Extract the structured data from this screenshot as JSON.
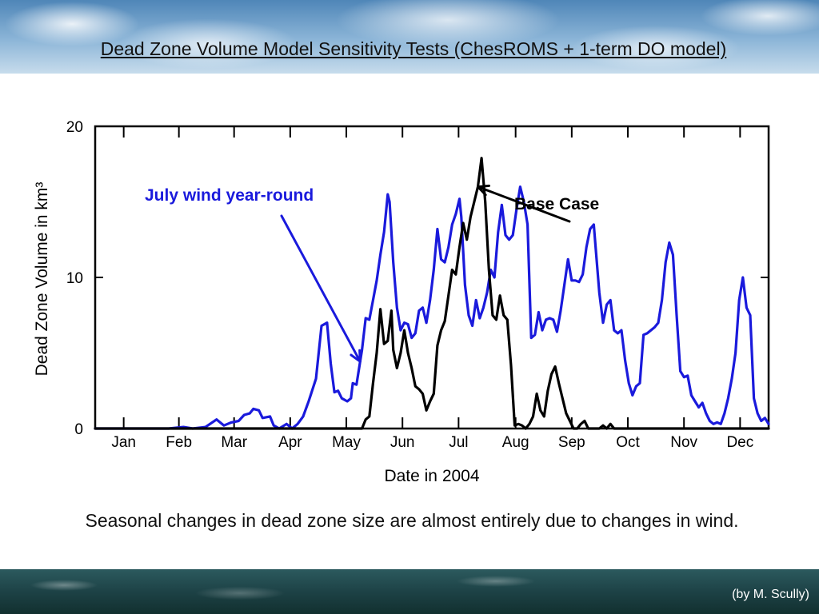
{
  "slide": {
    "title": "Dead Zone Volume Model Sensitivity Tests (ChesROMS + 1-term DO model)",
    "caption": "Seasonal changes in dead zone size are almost entirely due to changes in wind.",
    "credit": "(by M. Scully)"
  },
  "colors": {
    "blue_series": "#1a1adc",
    "black_series": "#000000"
  },
  "chart_data": {
    "type": "line",
    "xlabel": "Date in 2004",
    "ylabel": "Dead Zone Volume in km³",
    "ylim": [
      0,
      20
    ],
    "yticks": [
      0,
      10,
      20
    ],
    "ytick_labels": [
      "0",
      "10",
      "20"
    ],
    "months": [
      "Jan",
      "Feb",
      "Mar",
      "Apr",
      "May",
      "Jun",
      "Jul",
      "Aug",
      "Sep",
      "Oct",
      "Nov",
      "Dec"
    ],
    "annotations": [
      {
        "label": "July wind year-round",
        "series": "July wind year-round",
        "point_at_day": 144
      },
      {
        "label": "Base Case",
        "series": "Base Case",
        "point_at_day": 208
      }
    ],
    "series": [
      {
        "name": "July wind year-round",
        "color": "#1a1adc",
        "points": [
          [
            0,
            0
          ],
          [
            40,
            0
          ],
          [
            48,
            0.1
          ],
          [
            53,
            0
          ],
          [
            60,
            0.1
          ],
          [
            66,
            0.6
          ],
          [
            70,
            0.2
          ],
          [
            74,
            0.4
          ],
          [
            78,
            0.5
          ],
          [
            81,
            0.9
          ],
          [
            84,
            1.0
          ],
          [
            86,
            1.3
          ],
          [
            89,
            1.2
          ],
          [
            91,
            0.7
          ],
          [
            95,
            0.8
          ],
          [
            97,
            0.2
          ],
          [
            100,
            0
          ],
          [
            104,
            0.3
          ],
          [
            107,
            0
          ],
          [
            110,
            0.3
          ],
          [
            113,
            0.8
          ],
          [
            116,
            1.8
          ],
          [
            120,
            3.3
          ],
          [
            123,
            6.8
          ],
          [
            126,
            7.0
          ],
          [
            128,
            4.3
          ],
          [
            130,
            2.4
          ],
          [
            132,
            2.5
          ],
          [
            134,
            2.0
          ],
          [
            137,
            1.8
          ],
          [
            139,
            2.0
          ],
          [
            140,
            3.0
          ],
          [
            142,
            2.9
          ],
          [
            145,
            5.2
          ],
          [
            147,
            7.3
          ],
          [
            149,
            7.2
          ],
          [
            151,
            8.5
          ],
          [
            153,
            9.8
          ],
          [
            155,
            11.5
          ],
          [
            157,
            13.0
          ],
          [
            159,
            15.5
          ],
          [
            160,
            15.0
          ],
          [
            162,
            11.0
          ],
          [
            164,
            8.0
          ],
          [
            166,
            6.5
          ],
          [
            168,
            7.0
          ],
          [
            170,
            6.9
          ],
          [
            172,
            6.0
          ],
          [
            174,
            6.3
          ],
          [
            176,
            7.8
          ],
          [
            178,
            8.0
          ],
          [
            180,
            7.0
          ],
          [
            182,
            8.5
          ],
          [
            184,
            10.5
          ],
          [
            186,
            13.2
          ],
          [
            188,
            11.2
          ],
          [
            190,
            11.0
          ],
          [
            192,
            12.0
          ],
          [
            194,
            13.5
          ],
          [
            196,
            14.2
          ],
          [
            198,
            15.2
          ],
          [
            199,
            14.0
          ],
          [
            201,
            9.5
          ],
          [
            203,
            7.5
          ],
          [
            205,
            6.8
          ],
          [
            207,
            8.5
          ],
          [
            209,
            7.3
          ],
          [
            211,
            8.0
          ],
          [
            213,
            9.0
          ],
          [
            215,
            10.5
          ],
          [
            217,
            10.0
          ],
          [
            219,
            13.0
          ],
          [
            221,
            14.8
          ],
          [
            223,
            12.8
          ],
          [
            225,
            12.5
          ],
          [
            227,
            12.8
          ],
          [
            229,
            14.5
          ],
          [
            231,
            16.0
          ],
          [
            233,
            15.0
          ],
          [
            235,
            13.5
          ],
          [
            237,
            6.0
          ],
          [
            239,
            6.2
          ],
          [
            241,
            7.7
          ],
          [
            243,
            6.5
          ],
          [
            245,
            7.2
          ],
          [
            247,
            7.3
          ],
          [
            249,
            7.2
          ],
          [
            251,
            6.4
          ],
          [
            253,
            7.8
          ],
          [
            255,
            9.5
          ],
          [
            257,
            11.2
          ],
          [
            259,
            9.8
          ],
          [
            261,
            9.8
          ],
          [
            263,
            9.7
          ],
          [
            265,
            10.2
          ],
          [
            267,
            12.0
          ],
          [
            269,
            13.2
          ],
          [
            271,
            13.5
          ],
          [
            272,
            12.0
          ],
          [
            274,
            9.0
          ],
          [
            276,
            7.0
          ],
          [
            278,
            8.2
          ],
          [
            280,
            8.5
          ],
          [
            282,
            6.5
          ],
          [
            284,
            6.3
          ],
          [
            286,
            6.5
          ],
          [
            288,
            4.5
          ],
          [
            290,
            3.0
          ],
          [
            292,
            2.2
          ],
          [
            294,
            2.8
          ],
          [
            296,
            3.0
          ],
          [
            298,
            6.2
          ],
          [
            300,
            6.3
          ],
          [
            302,
            6.5
          ],
          [
            304,
            6.7
          ],
          [
            306,
            7.0
          ],
          [
            308,
            8.5
          ],
          [
            310,
            11.0
          ],
          [
            312,
            12.3
          ],
          [
            314,
            11.5
          ],
          [
            316,
            7.5
          ],
          [
            318,
            3.8
          ],
          [
            320,
            3.4
          ],
          [
            322,
            3.5
          ],
          [
            324,
            2.2
          ],
          [
            326,
            1.8
          ],
          [
            328,
            1.4
          ],
          [
            330,
            1.7
          ],
          [
            332,
            1.0
          ],
          [
            334,
            0.5
          ],
          [
            336,
            0.3
          ],
          [
            338,
            0.4
          ],
          [
            340,
            0.3
          ],
          [
            342,
            1.0
          ],
          [
            344,
            2.0
          ],
          [
            346,
            3.3
          ],
          [
            348,
            5.0
          ],
          [
            350,
            8.5
          ],
          [
            352,
            10.0
          ],
          [
            354,
            8.0
          ],
          [
            356,
            7.5
          ],
          [
            358,
            2.0
          ],
          [
            360,
            1.0
          ],
          [
            362,
            0.5
          ],
          [
            364,
            0.7
          ],
          [
            366,
            0.3
          ]
        ]
      },
      {
        "name": "Base Case",
        "color": "#000000",
        "points": [
          [
            0,
            0
          ],
          [
            130,
            0
          ],
          [
            145,
            0
          ],
          [
            147,
            0.6
          ],
          [
            149,
            0.8
          ],
          [
            151,
            3.0
          ],
          [
            153,
            5.0
          ],
          [
            155,
            7.9
          ],
          [
            157,
            5.6
          ],
          [
            159,
            5.8
          ],
          [
            161,
            7.8
          ],
          [
            162,
            5.2
          ],
          [
            164,
            4.0
          ],
          [
            166,
            5.0
          ],
          [
            168,
            6.5
          ],
          [
            170,
            5.0
          ],
          [
            172,
            4.0
          ],
          [
            174,
            2.8
          ],
          [
            176,
            2.6
          ],
          [
            178,
            2.3
          ],
          [
            180,
            1.2
          ],
          [
            182,
            1.8
          ],
          [
            184,
            2.3
          ],
          [
            186,
            5.5
          ],
          [
            188,
            6.5
          ],
          [
            190,
            7.1
          ],
          [
            192,
            8.8
          ],
          [
            194,
            10.5
          ],
          [
            196,
            10.2
          ],
          [
            198,
            12.0
          ],
          [
            200,
            13.6
          ],
          [
            202,
            12.5
          ],
          [
            204,
            14.0
          ],
          [
            206,
            15.0
          ],
          [
            208,
            16.0
          ],
          [
            210,
            17.9
          ],
          [
            212,
            15.0
          ],
          [
            214,
            10.5
          ],
          [
            216,
            7.5
          ],
          [
            218,
            7.2
          ],
          [
            220,
            8.8
          ],
          [
            222,
            7.5
          ],
          [
            224,
            7.2
          ],
          [
            226,
            4.2
          ],
          [
            228,
            0.2
          ],
          [
            230,
            0.3
          ],
          [
            232,
            0.2
          ],
          [
            234,
            0
          ],
          [
            236,
            0.3
          ],
          [
            238,
            0.8
          ],
          [
            240,
            2.3
          ],
          [
            242,
            1.2
          ],
          [
            244,
            0.8
          ],
          [
            246,
            2.5
          ],
          [
            248,
            3.6
          ],
          [
            250,
            4.1
          ],
          [
            252,
            3.0
          ],
          [
            254,
            2.0
          ],
          [
            256,
            1.0
          ],
          [
            258,
            0.5
          ],
          [
            260,
            0
          ],
          [
            262,
            0
          ],
          [
            264,
            0.3
          ],
          [
            266,
            0.5
          ],
          [
            268,
            0
          ],
          [
            270,
            0
          ],
          [
            274,
            0
          ],
          [
            276,
            0.2
          ],
          [
            278,
            0
          ],
          [
            280,
            0.3
          ],
          [
            282,
            0
          ],
          [
            284,
            0
          ],
          [
            290,
            0
          ],
          [
            366,
            0
          ]
        ]
      }
    ]
  }
}
